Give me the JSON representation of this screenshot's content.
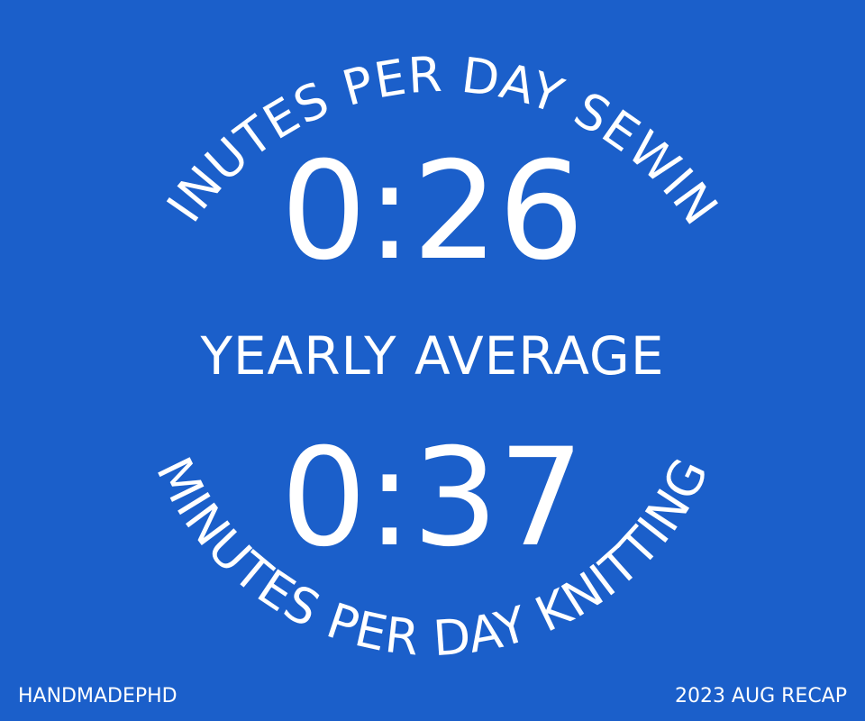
{
  "arcs": {
    "top_label": "MINUTES PER DAY SEWING",
    "bottom_label": "MINUTES PER DAY KNITTING"
  },
  "sewing": {
    "value": "0:26"
  },
  "summary": {
    "label": "YEARLY AVERAGE"
  },
  "knitting": {
    "value": "0:37"
  },
  "footer": {
    "brand": "HANDMADEPHD",
    "recap": "2023 AUG RECAP"
  },
  "colors": {
    "background": "#1b5fca",
    "text": "#ffffff"
  }
}
